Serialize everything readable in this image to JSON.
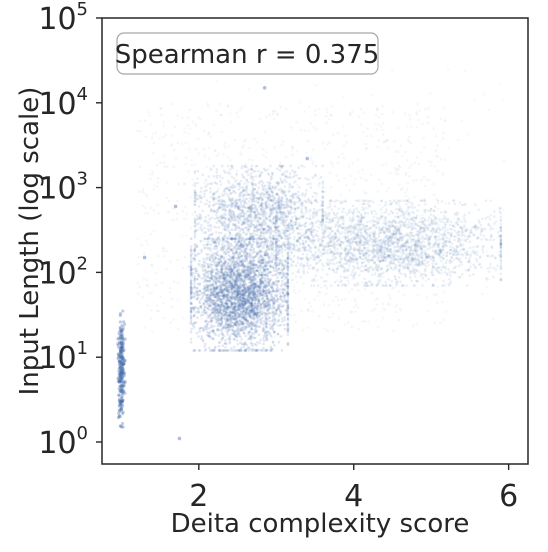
{
  "chart_data": {
    "type": "scatter",
    "title": "",
    "xlabel": "Deita complexity score",
    "ylabel": "Input Length (log scale)",
    "annotation": "Spearman r = 0.375",
    "x_ticks": [
      2,
      4,
      6
    ],
    "x_tick_labels": [
      "2",
      "4",
      "6"
    ],
    "y_scale": "log",
    "y_ticks": [
      1,
      10,
      100,
      1000,
      10000,
      100000
    ],
    "y_tick_labels": [
      {
        "base": "10",
        "exp": "0"
      },
      {
        "base": "10",
        "exp": "1"
      },
      {
        "base": "10",
        "exp": "2"
      },
      {
        "base": "10",
        "exp": "3"
      },
      {
        "base": "10",
        "exp": "4"
      },
      {
        "base": "10",
        "exp": "5"
      }
    ],
    "xlim": [
      0.75,
      6.25
    ],
    "ylim": [
      0.55,
      100000
    ],
    "grid": false,
    "point_color": "#4c72b0",
    "axis_color": "#262626",
    "clusters": [
      {
        "x": [
          0.95,
          1.05
        ],
        "y": [
          1.5,
          35
        ],
        "count": 250,
        "density": "dense vertical column"
      },
      {
        "x": [
          1.9,
          3.15
        ],
        "y": [
          12,
          250
        ],
        "count": 3000,
        "density": "very dense"
      },
      {
        "x": [
          1.95,
          3.6
        ],
        "y": [
          120,
          1800
        ],
        "count": 1600,
        "density": "dense"
      },
      {
        "x": [
          3.0,
          5.9
        ],
        "y": [
          70,
          700
        ],
        "count": 2200,
        "density": "medium"
      },
      {
        "x": [
          1.2,
          5.2
        ],
        "y": [
          20,
          10000
        ],
        "count": 900,
        "density": "sparse"
      }
    ],
    "outliers": [
      {
        "x": 1.75,
        "y": 1.1
      },
      {
        "x": 0.98,
        "y": 2.0
      },
      {
        "x": 1.3,
        "y": 150
      },
      {
        "x": 1.7,
        "y": 600
      },
      {
        "x": 3.4,
        "y": 2200
      },
      {
        "x": 2.85,
        "y": 15000
      }
    ]
  }
}
